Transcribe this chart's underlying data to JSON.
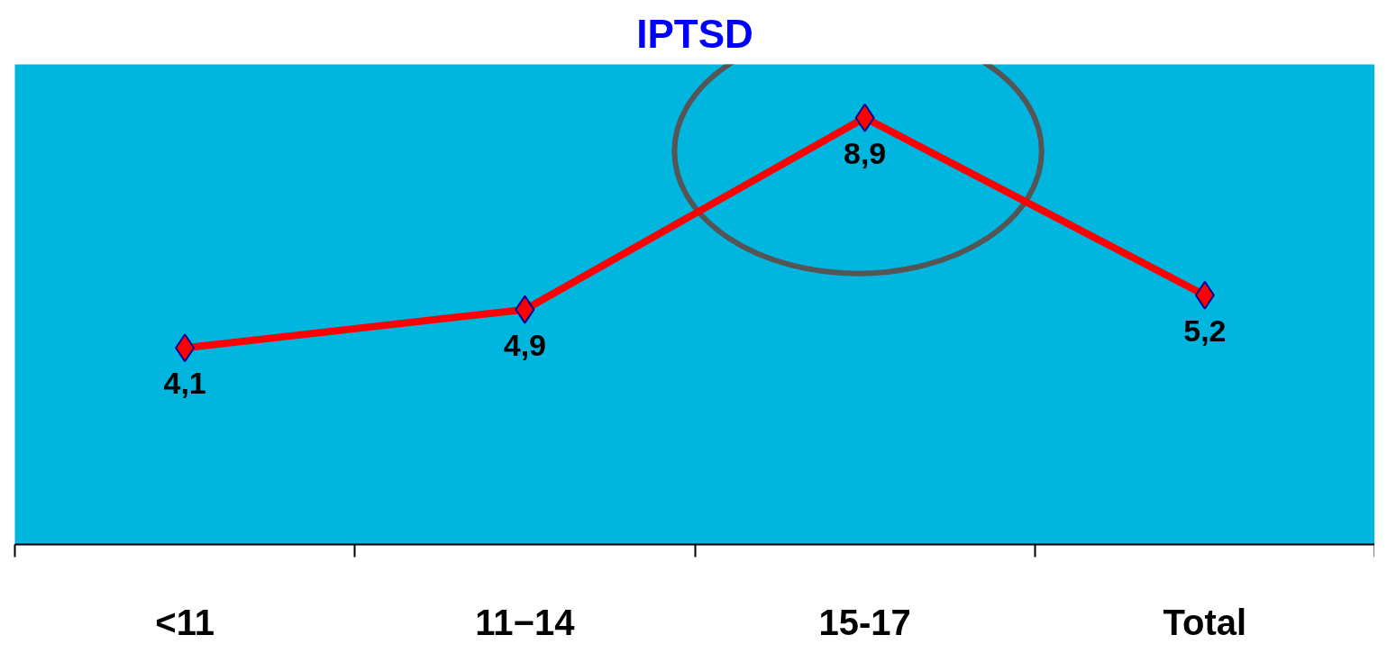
{
  "chart_data": {
    "type": "line",
    "title": "IPTSD",
    "categories": [
      "<11",
      "11−14",
      "15-17",
      "Total"
    ],
    "series": [
      {
        "color": "#ff0000",
        "values": [
          4.1,
          4.9,
          8.9,
          5.2
        ],
        "value_labels": [
          "4,1",
          "4,9",
          "8,9",
          "5,2"
        ]
      }
    ],
    "marker": "diamond",
    "line_style": "solid"
  }
}
